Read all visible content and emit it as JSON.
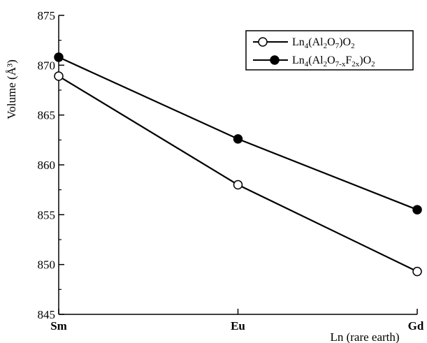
{
  "chart_data": {
    "type": "line",
    "categories": [
      "Sm",
      "Eu",
      "Gd"
    ],
    "series": [
      {
        "name": "Ln4(Al2O7)O2",
        "marker": "open-circle",
        "values": [
          868.9,
          858.0,
          849.3
        ]
      },
      {
        "name": "Ln4(Al2O7-xF2x)O2",
        "marker": "filled-circle",
        "values": [
          870.8,
          862.6,
          855.5
        ]
      }
    ],
    "xlabel": "Ln (rare earth)",
    "ylabel": "Volume (Å³)",
    "ylim": [
      845,
      875
    ],
    "yticks": [
      845,
      850,
      855,
      860,
      865,
      870,
      875
    ],
    "grid": false,
    "legend_position": "top-right",
    "line_color": "#000000"
  }
}
